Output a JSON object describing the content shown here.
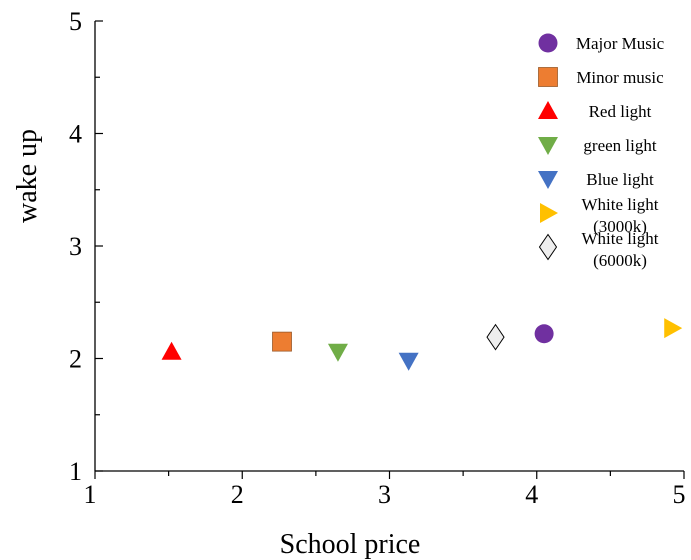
{
  "chart_data": {
    "type": "scatter",
    "xlabel": "School price",
    "ylabel": "wake up",
    "xlim": [
      1,
      5
    ],
    "ylim": [
      1,
      5
    ],
    "xticks": [
      "1",
      "2",
      "3",
      "4",
      "5"
    ],
    "yticks": [
      "1",
      "2",
      "3",
      "4",
      "5"
    ],
    "grid": false,
    "legend_position": "top-right",
    "series": [
      {
        "name": "Major Music",
        "marker": "circle",
        "color": "#7030a0",
        "x": 4.05,
        "y": 2.22
      },
      {
        "name": "Minor music",
        "marker": "square",
        "color": "#ed7d31",
        "x": 2.27,
        "y": 2.15
      },
      {
        "name": "Red light",
        "marker": "triangle-up",
        "color": "#ff0000",
        "x": 1.52,
        "y": 2.06
      },
      {
        "name": "green light",
        "marker": "triangle-down",
        "color": "#70ad47",
        "x": 2.65,
        "y": 2.06
      },
      {
        "name": "Blue light",
        "marker": "triangle-down",
        "color": "#4472c4",
        "x": 3.13,
        "y": 1.98
      },
      {
        "name": "White light\n(3000k)",
        "marker": "triangle-right",
        "color": "#ffc000",
        "x": 4.92,
        "y": 2.27
      },
      {
        "name": "White light\n(6000k)",
        "marker": "diamond",
        "color": "#eeeeee",
        "x": 3.72,
        "y": 2.19
      }
    ]
  }
}
